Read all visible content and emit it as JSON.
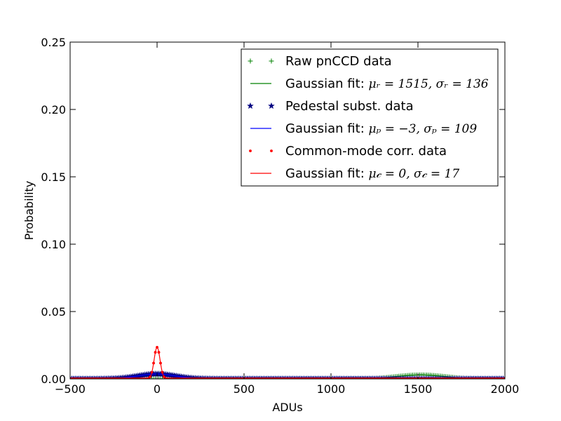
{
  "chart_data": {
    "type": "line",
    "xlabel": "ADUs",
    "ylabel": "Probability",
    "xlim": [
      -500,
      2000
    ],
    "ylim": [
      0,
      0.25
    ],
    "x_ticks": [
      -500,
      0,
      500,
      1000,
      1500,
      2000
    ],
    "x_tick_labels": [
      "−500",
      "0",
      "500",
      "1000",
      "1500",
      "2000"
    ],
    "y_ticks": [
      0,
      0.05,
      0.1,
      0.15,
      0.2,
      0.25
    ],
    "y_tick_labels": [
      "0.00",
      "0.05",
      "0.10",
      "0.15",
      "0.20",
      "0.25"
    ],
    "grid": false,
    "legend_position": "top-right",
    "series": [
      {
        "name": "Raw pnCCD data",
        "kind": "markers",
        "marker": "plus",
        "color": "#008000",
        "mu": 1515,
        "sigma": 136,
        "x_start": -500,
        "x_end": 2000,
        "x_step": 10
      },
      {
        "name": "Gaussian fit: ",
        "math": "μᵣ = 1515, σᵣ = 136",
        "kind": "fit",
        "color": "#008000",
        "mu": 1515,
        "sigma": 136
      },
      {
        "name": "Pedestal subst. data",
        "kind": "markers",
        "marker": "star",
        "color": "#000080",
        "mu": -3,
        "sigma": 109,
        "x_start": -500,
        "x_end": 2000,
        "x_step": 10
      },
      {
        "name": "Gaussian fit: ",
        "math": "μₚ = −3, σₚ = 109",
        "kind": "fit",
        "color": "#0000ff",
        "mu": -3,
        "sigma": 109
      },
      {
        "name": "Common-mode corr. data",
        "kind": "markers",
        "marker": "dot",
        "color": "#ff0000",
        "mu": 0,
        "sigma": 17,
        "x_start": -500,
        "x_end": 2000,
        "x_step": 10
      },
      {
        "name": "Gaussian fit: ",
        "math": "μ𝒸 = 0, σ𝒸 = 17",
        "kind": "fit",
        "color": "#ff0000",
        "mu": 0,
        "sigma": 17
      }
    ]
  }
}
